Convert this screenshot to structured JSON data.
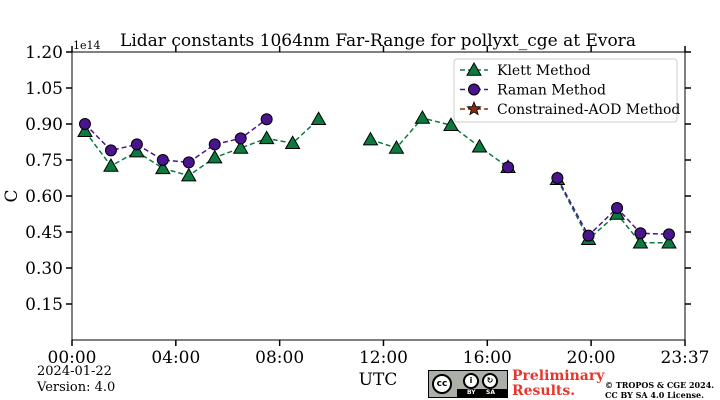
{
  "chart_data": {
    "type": "line",
    "title": "Lidar constants 1064nm Far-Range for pollyxt_cge at Evora",
    "xlabel": "UTC",
    "ylabel": "C",
    "y_exponent_label": "1e14",
    "xlim": [
      0,
      23.617
    ],
    "ylim": [
      0,
      1.2
    ],
    "x_ticks": [
      {
        "value": 0,
        "label": "00:00"
      },
      {
        "value": 4,
        "label": "04:00"
      },
      {
        "value": 8,
        "label": "08:00"
      },
      {
        "value": 12,
        "label": "12:00"
      },
      {
        "value": 16,
        "label": "16:00"
      },
      {
        "value": 20,
        "label": "20:00"
      },
      {
        "value": 23.617,
        "label": "23:37"
      }
    ],
    "y_ticks": [
      {
        "value": 0.15,
        "label": "0.15"
      },
      {
        "value": 0.3,
        "label": "0.30"
      },
      {
        "value": 0.45,
        "label": "0.45"
      },
      {
        "value": 0.6,
        "label": "0.60"
      },
      {
        "value": 0.75,
        "label": "0.75"
      },
      {
        "value": 0.9,
        "label": "0.90"
      },
      {
        "value": 1.05,
        "label": "1.05"
      },
      {
        "value": 1.2,
        "label": "1.20"
      }
    ],
    "grid": false,
    "legend_position": "top-right",
    "series": [
      {
        "name": "Klett Method",
        "color": "#0c7a3e",
        "marker": "triangle",
        "segments": [
          [
            [
              0.5,
              0.87
            ],
            [
              1.5,
              0.725
            ],
            [
              2.5,
              0.785
            ],
            [
              3.5,
              0.715
            ],
            [
              4.5,
              0.685
            ],
            [
              5.5,
              0.76
            ],
            [
              6.5,
              0.8
            ],
            [
              7.5,
              0.84
            ],
            [
              8.5,
              0.82
            ],
            [
              9.5,
              0.92
            ]
          ],
          [
            [
              11.5,
              0.835
            ],
            [
              12.5,
              0.8
            ],
            [
              13.5,
              0.925
            ],
            [
              14.6,
              0.895
            ],
            [
              15.7,
              0.805
            ],
            [
              16.8,
              0.72
            ]
          ],
          [
            [
              18.7,
              0.67
            ],
            [
              19.9,
              0.42
            ],
            [
              21.0,
              0.525
            ],
            [
              21.9,
              0.405
            ],
            [
              23.0,
              0.405
            ]
          ]
        ]
      },
      {
        "name": "Raman Method",
        "color": "#4a148c",
        "marker": "circle",
        "segments": [
          [
            [
              0.5,
              0.9
            ],
            [
              1.5,
              0.79
            ],
            [
              2.5,
              0.815
            ],
            [
              3.5,
              0.75
            ],
            [
              4.5,
              0.74
            ],
            [
              5.5,
              0.815
            ],
            [
              6.5,
              0.84
            ],
            [
              7.5,
              0.92
            ]
          ],
          [
            [
              16.8,
              0.72
            ]
          ],
          [
            [
              18.7,
              0.675
            ],
            [
              19.9,
              0.435
            ],
            [
              21.0,
              0.55
            ],
            [
              21.9,
              0.445
            ],
            [
              23.0,
              0.44
            ]
          ]
        ]
      },
      {
        "name": "Constrained-AOD Method",
        "color": "#8b2a0e",
        "marker": "star",
        "segments": []
      }
    ]
  },
  "footer": {
    "date": "2024-01-22",
    "version": "Version: 4.0",
    "preliminary": "Preliminary Results.",
    "copyright_line1": "© TROPOS & CGE 2024.",
    "copyright_line2": "CC BY SA 4.0 License.",
    "cc_label": "cc",
    "by_label": "BY",
    "sa_label": "SA"
  }
}
